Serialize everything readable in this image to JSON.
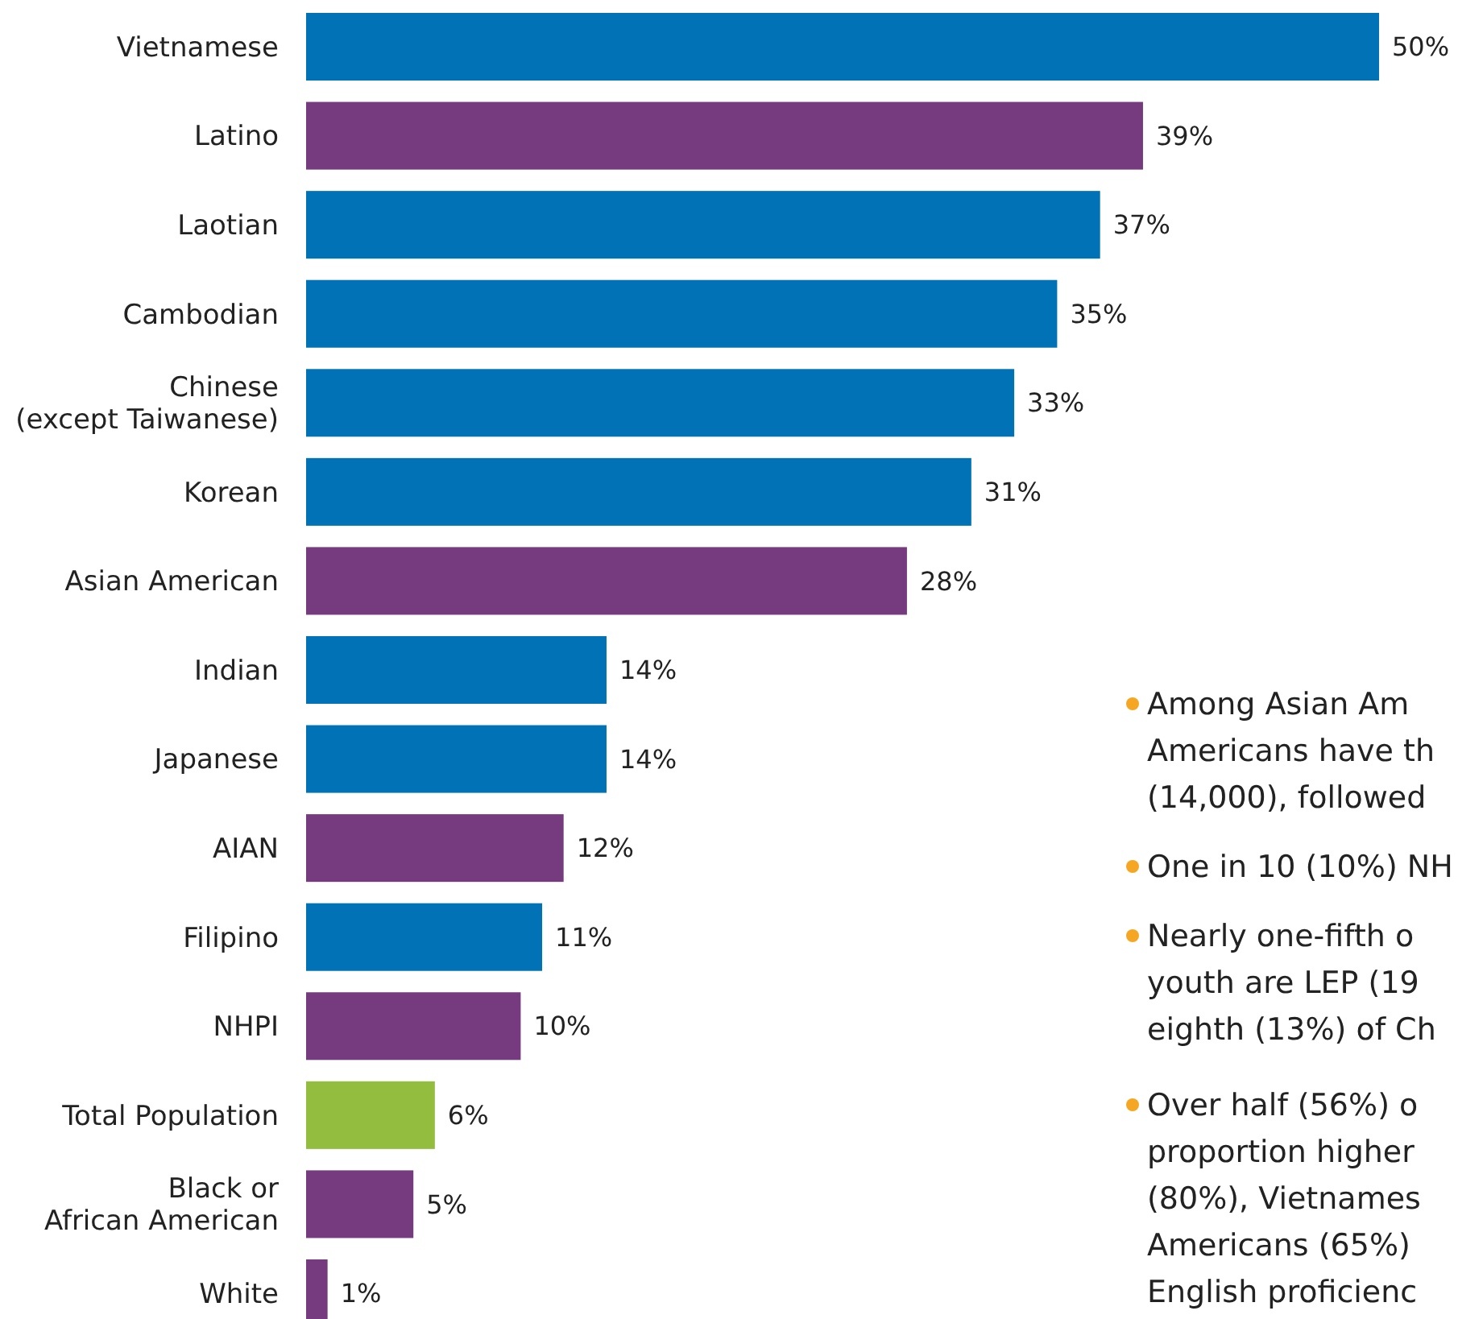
{
  "chart_data": {
    "type": "bar",
    "orientation": "horizontal",
    "value_labels": [
      "50%",
      "39%",
      "37%",
      "35%",
      "33%",
      "31%",
      "28%",
      "14%",
      "14%",
      "12%",
      "11%",
      "10%",
      "6%",
      "5%",
      "1%"
    ],
    "categories": [
      "Vietnamese",
      "Latino",
      "Laotian",
      "Cambodian",
      "Chinese\n(except Taiwanese)",
      "Korean",
      "Asian American",
      "Indian",
      "Japanese",
      "AIAN",
      "Filipino",
      "NHPI",
      "Total Population",
      "Black or\nAfrican American",
      "White"
    ],
    "values": [
      50,
      39,
      37,
      35,
      33,
      31,
      28,
      14,
      14,
      12,
      11,
      10,
      6,
      5,
      1
    ],
    "colors": [
      "#0072b5",
      "#763b7f",
      "#0072b5",
      "#0072b5",
      "#0072b5",
      "#0072b5",
      "#763b7f",
      "#0072b5",
      "#0072b5",
      "#763b7f",
      "#0072b5",
      "#763b7f",
      "#93bd3e",
      "#763b7f",
      "#763b7f"
    ],
    "annotations": [
      "Among Asian Am\nAmericans have th\n(14,000), followed",
      "One in 10 (10%) NH",
      "Nearly one-fifth o\nyouth are LEP (19\neighth (13%) of Ch",
      "Over half (56%) o\nproportion higher\n(80%), Vietnames\nAmericans (65%)\nEnglish proficienc"
    ]
  }
}
